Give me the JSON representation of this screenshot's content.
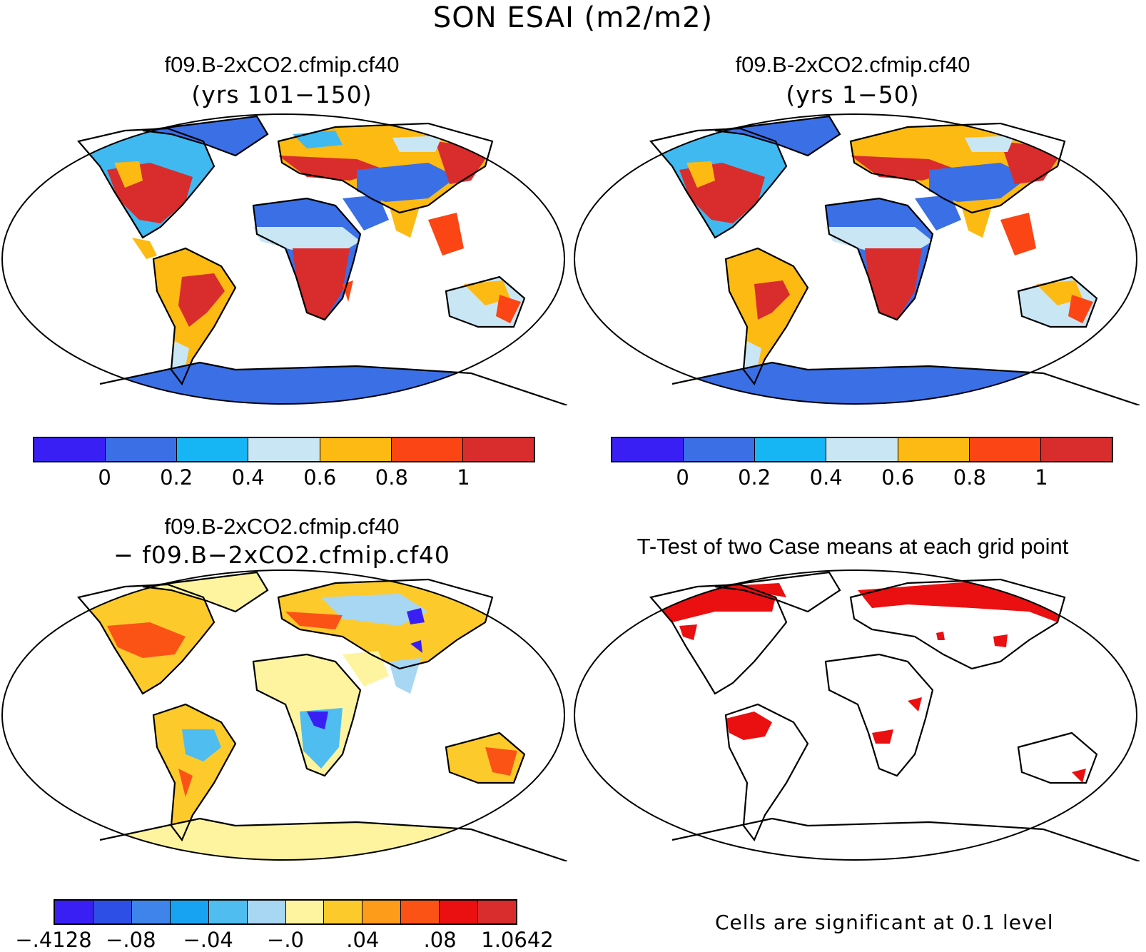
{
  "title": "SON ESAI (m2/m2)",
  "panels": [
    {
      "title": "f09.B-2xCO2.cfmip.cf40",
      "subtitle": "(yrs 101−150)"
    },
    {
      "title": "f09.B-2xCO2.cfmip.cf40",
      "subtitle": "(yrs 1−50)"
    },
    {
      "title": "f09.B-2xCO2.cfmip.cf40",
      "subtitle": "− f09.B−2xCO2.cfmip.cf40"
    },
    {
      "title": "T-Test of two Case means at each grid point",
      "subtitle": ""
    }
  ],
  "colorbar_abs": {
    "colors": [
      "#3a1ff5",
      "#3a6fe6",
      "#16b5f3",
      "#c9e6f5",
      "#fdba13",
      "#fb4514",
      "#d92c2c"
    ],
    "labels": [
      "0",
      "0.2",
      "0.4",
      "0.6",
      "0.8",
      "1"
    ]
  },
  "colorbar_diff": {
    "colors": [
      "#3a1ff5",
      "#2e4fe6",
      "#3f84ea",
      "#18a3f2",
      "#4fbdf0",
      "#a7d7f3",
      "#fef4a0",
      "#fdca2c",
      "#fd9b1a",
      "#fb5316",
      "#ea0f10",
      "#d92c2c"
    ],
    "labels": [
      "−.4128",
      "−.08",
      "−.04",
      "−.0",
      ".04",
      ".08",
      "1.0642"
    ]
  },
  "ttest_note": "Cells are significant at 0.1 level"
}
